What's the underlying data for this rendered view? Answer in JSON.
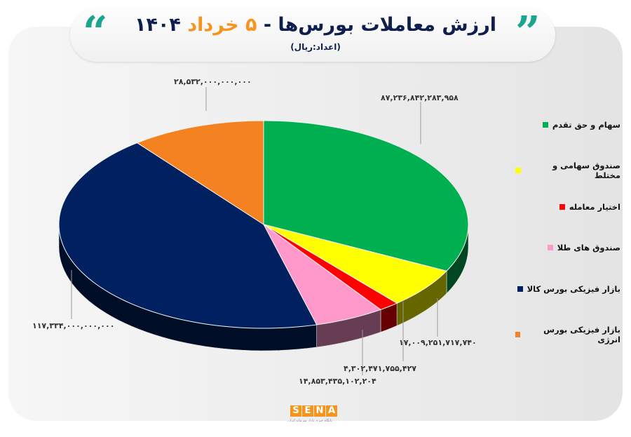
{
  "header": {
    "title_main": "ارزش معاملات بورس‌ها - ",
    "title_highlight": "۵ خرداد",
    "title_year": " ۱۴۰۴",
    "subtitle": "(اعداد:ریال)",
    "open_quote": "“",
    "close_quote": "”"
  },
  "chart_data": {
    "type": "pie",
    "style": "3d",
    "unit": "ریال",
    "legend_position": "right",
    "start_angle": "top, clockwise",
    "series": [
      {
        "name": "سهام و حق تقدم",
        "value": 87236842283958,
        "label": "۸۷,۲۳۶,۸۴۲,۲۸۳,۹۵۸",
        "color": "#00b050"
      },
      {
        "name": "صندوق سهامی و مختلط",
        "value": 17009251717740,
        "label": "۱۷,۰۰۹,۲۵۱,۷۱۷,۷۴۰",
        "color": "#ffff00"
      },
      {
        "name": "اختیار معامله",
        "value": 4302471755427,
        "label": "۴,۳۰۲,۴۷۱,۷۵۵,۴۲۷",
        "color": "#ff0000"
      },
      {
        "name": "صندوق های طلا",
        "value": 14853435102204,
        "label": "۱۴,۸۵۳,۴۳۵,۱۰۲,۲۰۴",
        "color": "#ff99cc"
      },
      {
        "name": "بازار فیزیکی بورس کالا",
        "value": 117334000000000,
        "label": "۱۱۷,۳۳۴,۰۰۰,۰۰۰,۰۰۰",
        "color": "#002060"
      },
      {
        "name": "بازار فیزیکی بورس انرژی",
        "value": 28532000000000,
        "label": "۲۸,۵۳۲,۰۰۰,۰۰۰,۰۰۰",
        "color": "#f58220"
      }
    ]
  },
  "footer": {
    "logo_text": "SENA",
    "logo_letters": [
      "S",
      "E",
      "N",
      "A"
    ],
    "tagline": "پایگاه خبری بازار سرمایه ایران",
    "brand_color": "#f7941d"
  }
}
